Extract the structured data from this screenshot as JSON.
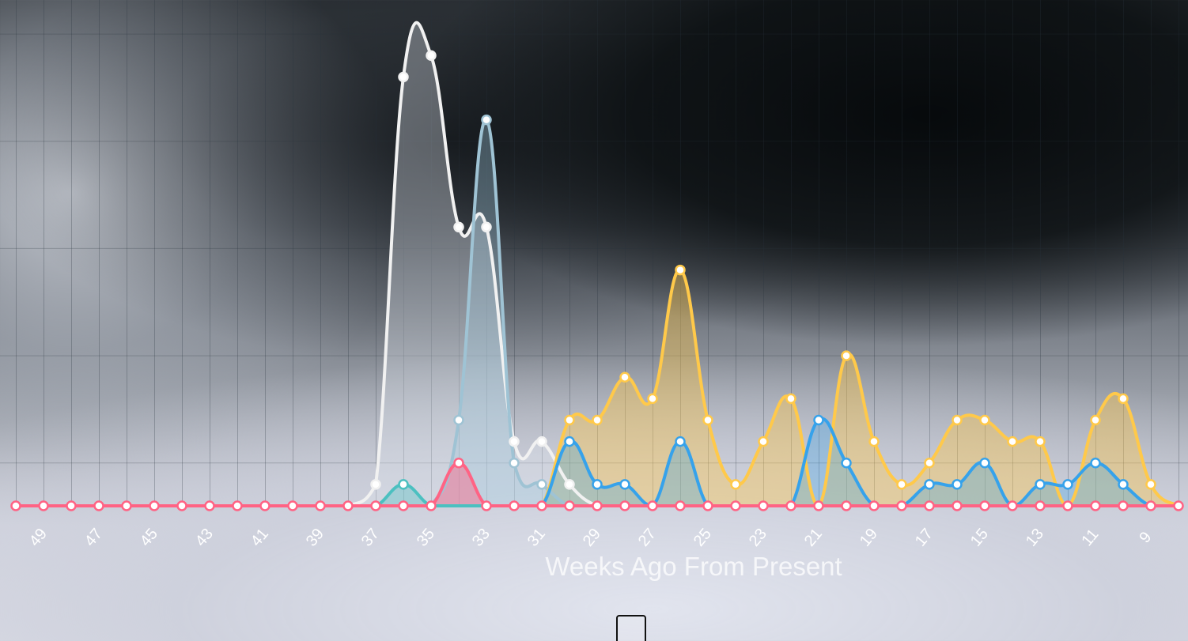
{
  "chart_data": {
    "type": "area",
    "xlabel": "Weeks Ago From Present",
    "ylabel": "",
    "x_reversed": true,
    "x": [
      50,
      49,
      48,
      47,
      46,
      45,
      44,
      43,
      42,
      41,
      40,
      39,
      38,
      37,
      36,
      35,
      34,
      33,
      32,
      31,
      30,
      29,
      28,
      27,
      26,
      25,
      24,
      23,
      22,
      21,
      20,
      19,
      18,
      17,
      16,
      15,
      14,
      13,
      12,
      11,
      10,
      9,
      8
    ],
    "tick_labels": [
      49,
      47,
      45,
      43,
      41,
      39,
      37,
      35,
      33,
      31,
      29,
      27,
      25,
      23,
      21,
      19,
      17,
      15,
      13,
      11,
      9
    ],
    "ylim": [
      0,
      4.6
    ],
    "grid": true,
    "legend": "none",
    "series": [
      {
        "color": "#f1f1f1",
        "fill": "rgba(220,226,234,0.35)",
        "values": [
          0,
          0,
          0,
          0,
          0,
          0,
          0,
          0,
          0,
          0,
          0,
          0,
          0,
          0.2,
          4.0,
          4.2,
          2.6,
          2.6,
          0.6,
          0.6,
          0.2,
          0,
          0,
          0,
          0,
          0,
          0,
          0,
          0,
          0,
          0,
          0,
          0,
          0,
          0,
          0,
          0,
          0,
          0,
          0,
          0,
          0,
          0
        ]
      },
      {
        "color": "#9fc3d4",
        "fill": "rgba(160,200,220,0.35)",
        "values": [
          0,
          0,
          0,
          0,
          0,
          0,
          0,
          0,
          0,
          0,
          0,
          0,
          0,
          0,
          0,
          0,
          0.8,
          3.6,
          0.4,
          0.2,
          0,
          0,
          0,
          0,
          0,
          0,
          0,
          0,
          0,
          0,
          0,
          0,
          0,
          0,
          0,
          0,
          0,
          0,
          0,
          0,
          0,
          0,
          0
        ]
      },
      {
        "color": "#ffc94a",
        "fill": "rgba(255,201,74,0.40)",
        "values": [
          0,
          0,
          0,
          0,
          0,
          0,
          0,
          0,
          0,
          0,
          0,
          0,
          0,
          0,
          0,
          0,
          0,
          0,
          0,
          0,
          0.8,
          0.8,
          1.2,
          1.0,
          2.2,
          0.8,
          0.2,
          0.6,
          1.0,
          0,
          1.4,
          0.6,
          0.2,
          0.4,
          0.8,
          0.8,
          0.6,
          0.6,
          0,
          0.8,
          1.0,
          0.2,
          0
        ]
      },
      {
        "color": "#36a2eb",
        "fill": "rgba(54,162,235,0.30)",
        "values": [
          0,
          0,
          0,
          0,
          0,
          0,
          0,
          0,
          0,
          0,
          0,
          0,
          0,
          0,
          0,
          0,
          0,
          0,
          0,
          0,
          0.6,
          0.2,
          0.2,
          0,
          0.6,
          0,
          0,
          0,
          0,
          0.8,
          0.4,
          0,
          0,
          0.2,
          0.2,
          0.4,
          0,
          0.2,
          0.2,
          0.4,
          0.2,
          0,
          0
        ]
      },
      {
        "color": "#4bc0c0",
        "fill": "rgba(75,192,192,0.35)",
        "values": [
          0,
          0,
          0,
          0,
          0,
          0,
          0,
          0,
          0,
          0,
          0,
          0,
          0,
          0,
          0.2,
          0,
          0,
          0,
          0,
          0,
          0,
          0,
          0,
          0,
          0,
          0,
          0,
          0,
          0,
          0,
          0,
          0,
          0,
          0,
          0,
          0,
          0,
          0,
          0,
          0,
          0,
          0,
          0
        ]
      },
      {
        "color": "#ff6384",
        "fill": "rgba(255,99,132,0.45)",
        "values": [
          0,
          0,
          0,
          0,
          0,
          0,
          0,
          0,
          0,
          0,
          0,
          0,
          0,
          0,
          0,
          0,
          0.4,
          0,
          0,
          0,
          0,
          0,
          0,
          0,
          0,
          0,
          0,
          0,
          0,
          0,
          0,
          0,
          0,
          0,
          0,
          0,
          0,
          0,
          0,
          0,
          0,
          0,
          0
        ]
      }
    ]
  }
}
